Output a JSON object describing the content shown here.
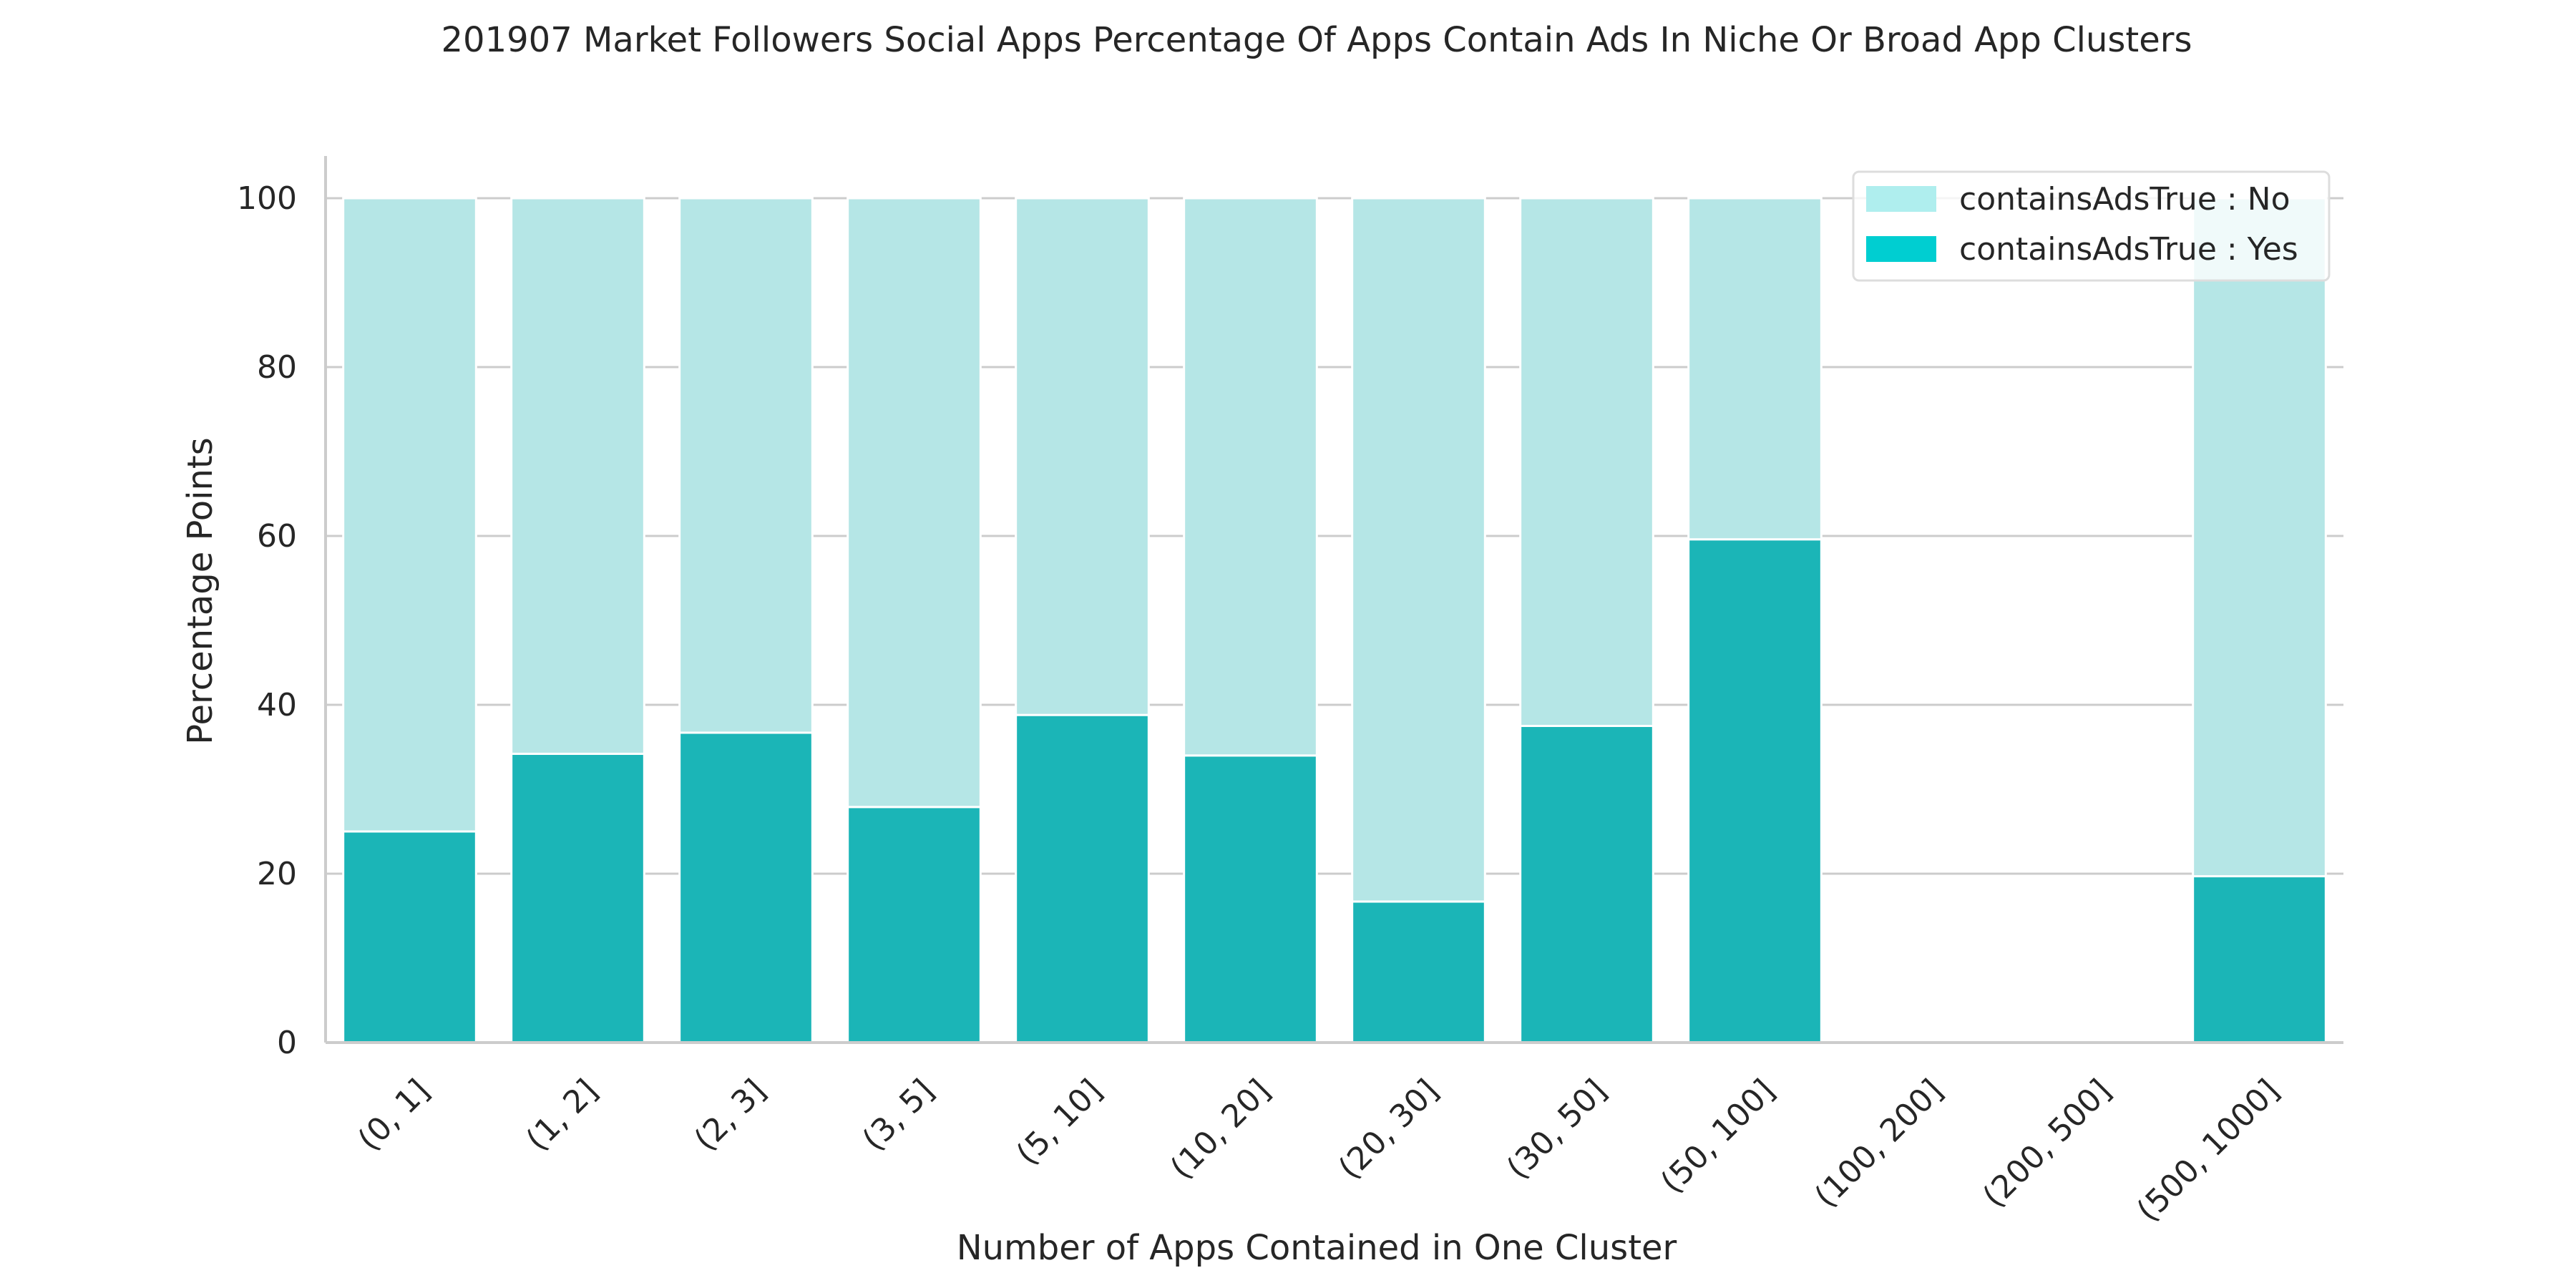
{
  "chart_data": {
    "type": "bar",
    "stacked": true,
    "title": "201907 Market Followers Social Apps Percentage Of Apps Contain Ads In Niche Or Broad App Clusters",
    "xlabel": "Number of Apps Contained in One Cluster",
    "ylabel": "Percentage Points",
    "ylim": [
      0,
      105
    ],
    "yticks": [
      0,
      20,
      40,
      60,
      80,
      100
    ],
    "grid": true,
    "legend_position": "top-right",
    "categories": [
      "(0, 1]",
      "(1, 2]",
      "(2, 3]",
      "(3, 5]",
      "(5, 10]",
      "(10, 20]",
      "(20, 30]",
      "(30, 50]",
      "(50, 100]",
      "(100, 200]",
      "(200, 500]",
      "(500, 1000]"
    ],
    "series": [
      {
        "name": "containsAdsTrue : Yes",
        "color": "#1bb5b7",
        "legend_color": "#00ced1",
        "values": [
          25,
          34.2,
          36.7,
          27.9,
          38.8,
          34,
          16.7,
          37.5,
          59.6,
          0,
          0,
          19.7
        ]
      },
      {
        "name": "containsAdsTrue : No",
        "color": "#b5e6e6",
        "legend_color": "#afeeee",
        "values": [
          75,
          65.8,
          63.3,
          72.1,
          61.2,
          66,
          83.3,
          62.5,
          40.4,
          0,
          0,
          80.3
        ]
      }
    ],
    "legend_order": [
      "containsAdsTrue : No",
      "containsAdsTrue : Yes"
    ]
  }
}
